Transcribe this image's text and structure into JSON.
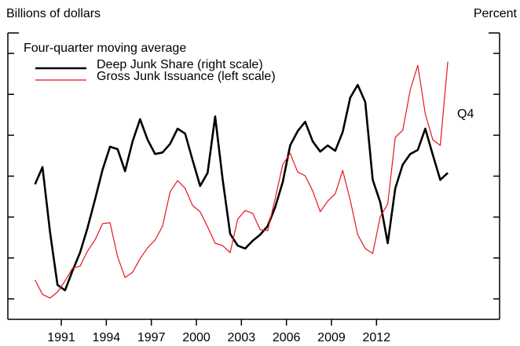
{
  "chart_data": {
    "type": "line",
    "y_label": "Billions of dollars",
    "y2_label": "Percent",
    "legend_title": "Four-quarter moving average",
    "annotation": "Q4",
    "x": [
      1989.25,
      1989.75,
      1990.25,
      1990.75,
      1991.25,
      1991.75,
      1992.25,
      1992.75,
      1993.25,
      1993.75,
      1994.25,
      1994.75,
      1995.25,
      1995.75,
      1996.25,
      1996.75,
      1997.25,
      1997.75,
      1998.25,
      1998.75,
      1999.25,
      1999.75,
      2000.25,
      2000.75,
      2001.25,
      2001.75,
      2002.25,
      2002.75,
      2003.25,
      2003.75,
      2004.25,
      2004.75,
      2005.25,
      2005.75,
      2006.25,
      2006.75,
      2007.25,
      2007.75,
      2008.25,
      2008.75,
      2009.25,
      2009.75,
      2010.25,
      2010.75,
      2011.25,
      2011.75,
      2012.25,
      2012.75,
      2013.25,
      2013.75,
      2014.25,
      2014.75,
      2015.25,
      2015.75,
      2016.25,
      2016.75
    ],
    "series": [
      {
        "name": "Deep Junk Share (right scale)",
        "color": "#000000",
        "axis": "y2",
        "values": [
          28.0,
          32.2,
          16.3,
          3.4,
          2.1,
          6.9,
          11.3,
          17.4,
          24.3,
          31.6,
          37.2,
          36.6,
          31.2,
          38.5,
          43.9,
          38.9,
          35.4,
          35.8,
          37.9,
          41.6,
          40.4,
          33.9,
          27.6,
          30.8,
          44.6,
          29.3,
          15.9,
          13.0,
          12.3,
          14.2,
          15.7,
          17.8,
          22.4,
          28.5,
          37.5,
          41.0,
          43.3,
          38.5,
          36.0,
          37.5,
          36.2,
          40.8,
          49.2,
          52.3,
          48.1,
          29.1,
          23.6,
          13.6,
          27.0,
          32.8,
          35.4,
          36.4,
          41.6,
          35.2,
          29.1,
          30.8
        ]
      },
      {
        "name": "Gross Junk Issuance (left scale)",
        "color": "#e8141e",
        "values": [
          4.6,
          1.1,
          0.2,
          1.7,
          4.4,
          7.5,
          8.0,
          11.7,
          14.4,
          18.4,
          18.6,
          10.3,
          5.2,
          6.5,
          9.8,
          12.5,
          14.4,
          17.8,
          26.2,
          28.9,
          27.0,
          22.8,
          21.3,
          17.6,
          13.6,
          13.0,
          11.3,
          19.5,
          21.6,
          20.9,
          16.9,
          16.7,
          24.5,
          32.8,
          35.6,
          31.0,
          30.1,
          26.4,
          21.3,
          23.9,
          25.7,
          31.4,
          24.1,
          15.7,
          12.3,
          11.1,
          20.1,
          23.2,
          39.5,
          41.2,
          51.1,
          57.1,
          45.2,
          38.9,
          37.5,
          58.0
        ]
      }
    ],
    "xlim": [
      1987.44,
      2020.2
    ],
    "xticks": [
      1991,
      1994,
      1997,
      2000,
      2003,
      2006,
      2009,
      2012
    ],
    "ylim": [
      -5,
      65
    ],
    "yticks": [
      0,
      10,
      20,
      30,
      40,
      50,
      60
    ],
    "y2lim": [
      -5,
      65
    ],
    "y2ticks": [
      0,
      10,
      20,
      30,
      40,
      50,
      60
    ],
    "legend": "upper left"
  }
}
